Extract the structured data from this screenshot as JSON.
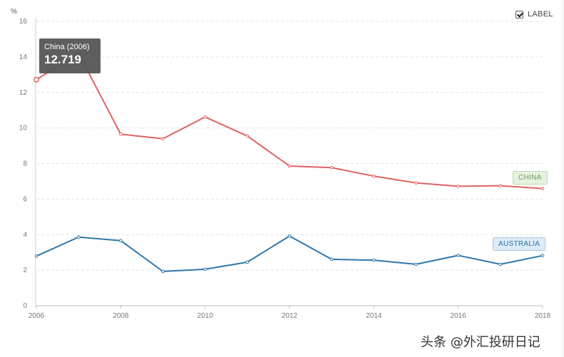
{
  "chart_data": {
    "type": "line",
    "unit": "%",
    "x": [
      2006,
      2007,
      2008,
      2009,
      2010,
      2011,
      2012,
      2013,
      2014,
      2015,
      2016,
      2017,
      2018
    ],
    "series": [
      {
        "name": "CHINA",
        "color": "#e06363",
        "values": [
          12.719,
          14.2,
          9.65,
          9.4,
          10.62,
          9.55,
          7.86,
          7.77,
          7.29,
          6.91,
          6.72,
          6.75,
          6.59
        ]
      },
      {
        "name": "AUSTRALIA",
        "color": "#2e77aa",
        "values": [
          2.79,
          3.86,
          3.66,
          1.93,
          2.05,
          2.45,
          3.92,
          2.61,
          2.56,
          2.33,
          2.83,
          2.33,
          2.82
        ]
      }
    ],
    "y_ticks": [
      "0",
      "2",
      "4",
      "6",
      "8",
      "10",
      "12",
      "14",
      "16"
    ],
    "x_ticks": [
      "2006",
      "2008",
      "2010",
      "2012",
      "2014",
      "2016",
      "2018"
    ],
    "ylim": [
      0,
      16
    ],
    "xlim": [
      2006,
      2018
    ],
    "grid": true,
    "legend": "inline-end-labels"
  },
  "label_toggle": {
    "text": "LABEL",
    "checked": true
  },
  "tooltip": {
    "title": "China (2006)",
    "value": "12.719"
  },
  "watermark": "头条 @外汇投研日记"
}
